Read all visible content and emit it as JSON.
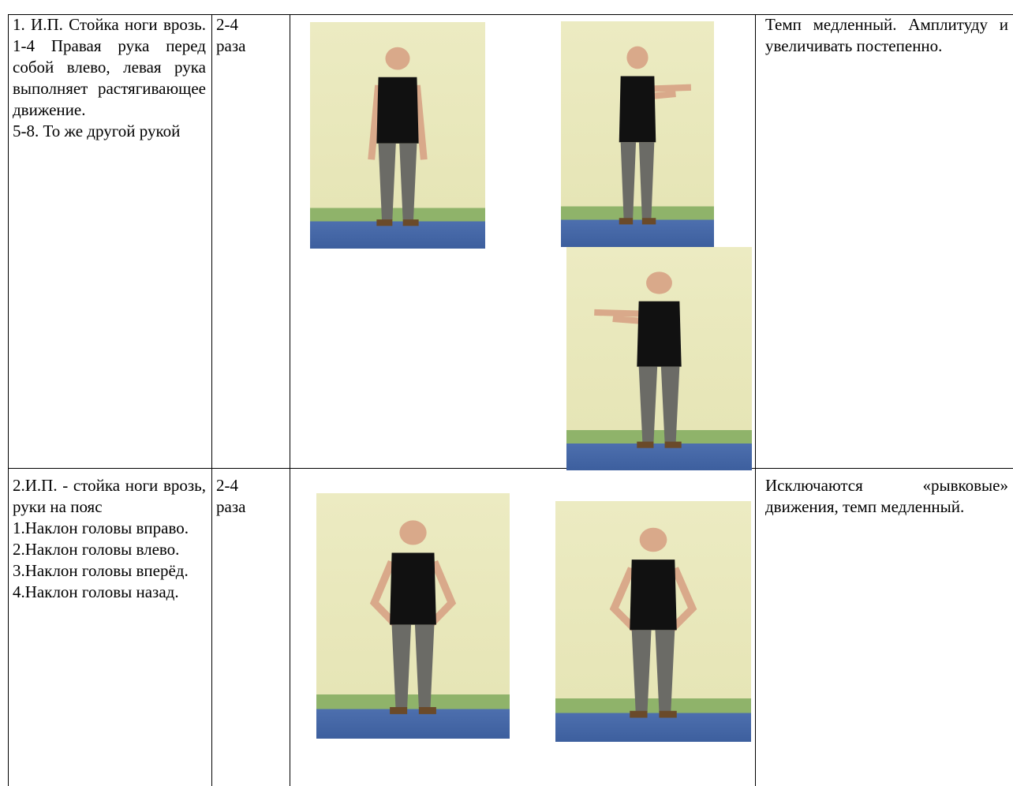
{
  "table": {
    "rows": [
      {
        "description": [
          "1. И.П. Стойка ноги врозь. 1-4 Правая рука перед собой влево, левая рука выполняет растягивающее движение.",
          "5-8. То же другой рукой"
        ],
        "reps": "2-4 раза",
        "note": "Темп медленный. Амплитуду и увеличивать постепенно."
      },
      {
        "description": [
          "2.И.П. - стойка ноги врозь, руки на пояс",
          "1.Наклон головы вправо.",
          "2.Наклон головы влево.",
          "3.Наклон головы вперёд.",
          "4.Наклон головы назад."
        ],
        "reps": "2-4 раза",
        "note": "Исключаются «рывковые» движения, темп медленный."
      }
    ]
  }
}
